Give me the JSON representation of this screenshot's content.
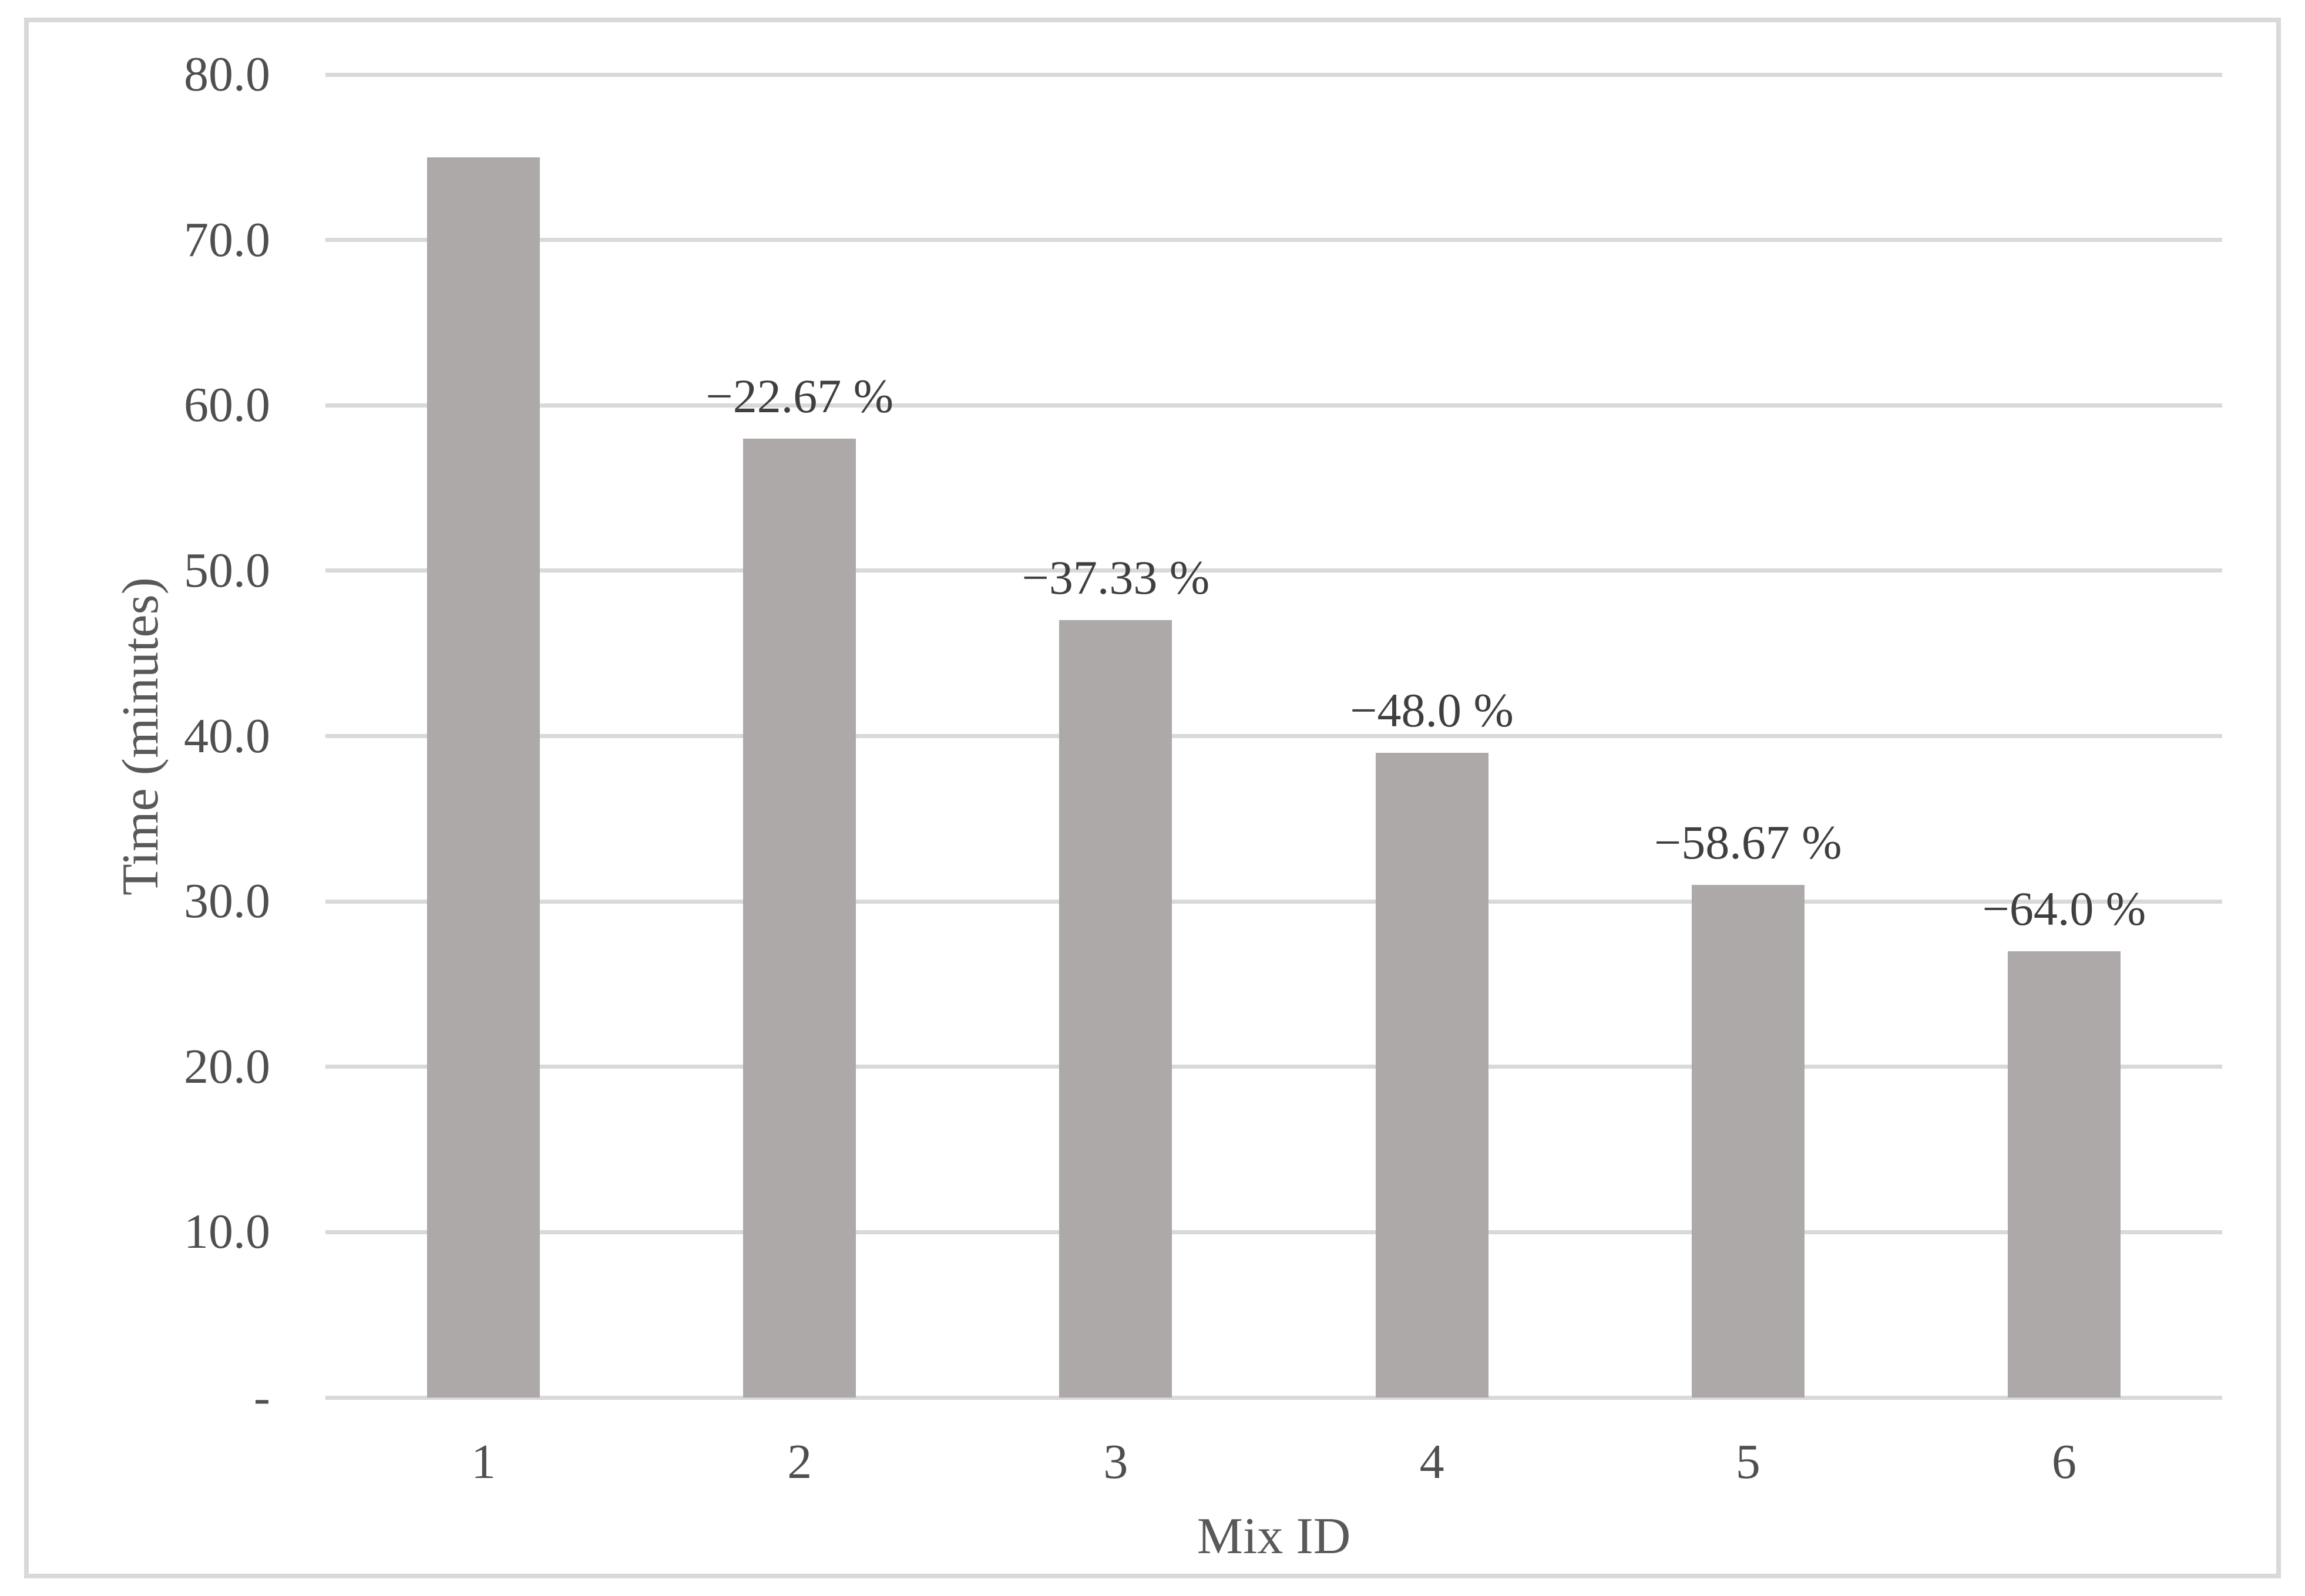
{
  "chart_data": {
    "type": "bar",
    "title": "",
    "categories": [
      "1",
      "2",
      "3",
      "4",
      "5",
      "6"
    ],
    "values": [
      75,
      58,
      47,
      39,
      31,
      27
    ],
    "bar_labels": [
      "",
      "−22.67 %",
      "−37.33 %",
      "−48.0 %",
      "−58.67 %",
      "−64.0 %"
    ],
    "xlabel": "Mix ID",
    "ylabel": "Time (minutes)",
    "ylim": [
      0,
      80
    ],
    "ytick_interval": 10,
    "yticks": [
      {
        "value": 80,
        "label": "80.0"
      },
      {
        "value": 70,
        "label": "70.0"
      },
      {
        "value": 60,
        "label": "60.0"
      },
      {
        "value": 50,
        "label": "50.0"
      },
      {
        "value": 40,
        "label": "40.0"
      },
      {
        "value": 30,
        "label": "30.0"
      },
      {
        "value": 20,
        "label": "20.0"
      },
      {
        "value": 10,
        "label": "10.0"
      },
      {
        "value": 0,
        "label": "-"
      }
    ],
    "grid": "horizontal-only",
    "legend": "none",
    "colors": {
      "bar_fill": "#aca9a8",
      "gridline": "#d9d9d9",
      "frame_border": "#d9d9d9",
      "tick_text": "#4f4f4f",
      "annotation_text": "#3f3f3f",
      "axis_title_text": "#595959",
      "background": "#ffffff"
    }
  }
}
